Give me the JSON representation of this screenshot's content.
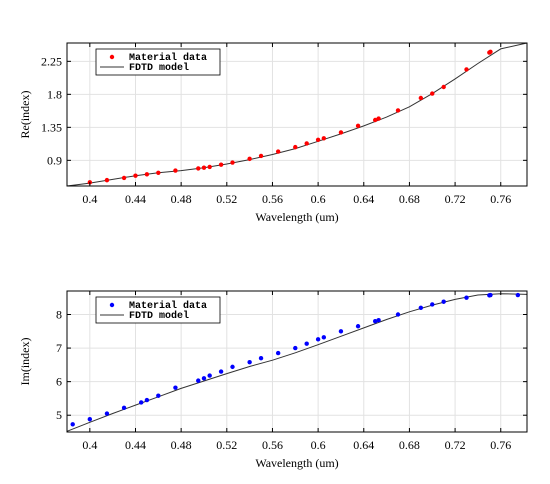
{
  "chart_data": [
    {
      "type": "scatter",
      "xlabel": "Wavelength (um)",
      "ylabel": "Re(index)",
      "xlim": [
        0.38,
        0.783
      ],
      "ylim": [
        0.55,
        2.5
      ],
      "xticks": [
        0.4,
        0.44,
        0.48,
        0.52,
        0.56,
        0.6,
        0.64,
        0.68,
        0.72,
        0.76
      ],
      "xtick_labels": [
        "0.4",
        "0.44",
        "0.48",
        "0.52",
        "0.56",
        "0.6",
        "0.64",
        "0.68",
        "0.72",
        "0.76"
      ],
      "yticks": [
        0.9,
        1.35,
        1.8,
        2.25
      ],
      "ytick_labels": [
        "0.9",
        "1.35",
        "1.8",
        "2.25"
      ],
      "grid": true,
      "legend_position": "top-left",
      "series": [
        {
          "name": "Material data",
          "kind": "markers",
          "color": "#ff0000",
          "x": [
            0.4,
            0.415,
            0.43,
            0.44,
            0.45,
            0.46,
            0.475,
            0.495,
            0.5,
            0.505,
            0.515,
            0.525,
            0.54,
            0.55,
            0.565,
            0.58,
            0.59,
            0.6,
            0.605,
            0.62,
            0.635,
            0.65,
            0.653,
            0.67,
            0.69,
            0.7,
            0.71,
            0.73,
            0.75,
            0.751
          ],
          "y": [
            0.6,
            0.63,
            0.66,
            0.69,
            0.71,
            0.73,
            0.76,
            0.79,
            0.8,
            0.81,
            0.84,
            0.87,
            0.92,
            0.96,
            1.02,
            1.08,
            1.13,
            1.18,
            1.2,
            1.28,
            1.37,
            1.45,
            1.47,
            1.58,
            1.75,
            1.81,
            1.9,
            2.14,
            2.37,
            2.38
          ]
        },
        {
          "name": "FDTD model",
          "kind": "line",
          "color": "#333333",
          "x": [
            0.38,
            0.4,
            0.42,
            0.44,
            0.46,
            0.48,
            0.5,
            0.52,
            0.54,
            0.56,
            0.58,
            0.6,
            0.62,
            0.64,
            0.66,
            0.68,
            0.7,
            0.72,
            0.74,
            0.76,
            0.783
          ],
          "y": [
            0.55,
            0.59,
            0.64,
            0.69,
            0.73,
            0.76,
            0.8,
            0.85,
            0.91,
            0.98,
            1.06,
            1.16,
            1.26,
            1.37,
            1.49,
            1.63,
            1.81,
            2.01,
            2.22,
            2.42,
            2.5
          ]
        }
      ]
    },
    {
      "type": "scatter",
      "xlabel": "Wavelength (um)",
      "ylabel": "Im(index)",
      "xlim": [
        0.38,
        0.783
      ],
      "ylim": [
        4.5,
        8.7
      ],
      "xticks": [
        0.4,
        0.44,
        0.48,
        0.52,
        0.56,
        0.6,
        0.64,
        0.68,
        0.72,
        0.76
      ],
      "xtick_labels": [
        "0.4",
        "0.44",
        "0.48",
        "0.52",
        "0.56",
        "0.6",
        "0.64",
        "0.68",
        "0.72",
        "0.76"
      ],
      "yticks": [
        5,
        6,
        7,
        8
      ],
      "ytick_labels": [
        "5",
        "6",
        "7",
        "8"
      ],
      "grid": true,
      "legend_position": "top-left",
      "series": [
        {
          "name": "Material data",
          "kind": "markers",
          "color": "#0000ff",
          "x": [
            0.385,
            0.4,
            0.415,
            0.43,
            0.445,
            0.45,
            0.46,
            0.475,
            0.495,
            0.5,
            0.505,
            0.515,
            0.525,
            0.54,
            0.55,
            0.565,
            0.58,
            0.59,
            0.6,
            0.605,
            0.62,
            0.635,
            0.65,
            0.653,
            0.67,
            0.69,
            0.7,
            0.71,
            0.73,
            0.75,
            0.751,
            0.775
          ],
          "y": [
            4.73,
            4.88,
            5.05,
            5.22,
            5.38,
            5.45,
            5.58,
            5.82,
            6.03,
            6.1,
            6.18,
            6.3,
            6.44,
            6.58,
            6.7,
            6.85,
            7.0,
            7.13,
            7.26,
            7.32,
            7.5,
            7.65,
            7.8,
            7.83,
            8.0,
            8.2,
            8.3,
            8.38,
            8.5,
            8.57,
            8.58,
            8.58
          ]
        },
        {
          "name": "FDTD model",
          "kind": "line",
          "color": "#333333",
          "x": [
            0.38,
            0.4,
            0.42,
            0.44,
            0.46,
            0.48,
            0.5,
            0.52,
            0.54,
            0.56,
            0.58,
            0.6,
            0.62,
            0.64,
            0.66,
            0.68,
            0.7,
            0.72,
            0.74,
            0.76,
            0.783
          ],
          "y": [
            4.52,
            4.79,
            5.05,
            5.3,
            5.55,
            5.8,
            6.02,
            6.24,
            6.45,
            6.64,
            6.86,
            7.1,
            7.35,
            7.6,
            7.85,
            8.08,
            8.28,
            8.45,
            8.58,
            8.62,
            8.6
          ]
        }
      ]
    }
  ]
}
